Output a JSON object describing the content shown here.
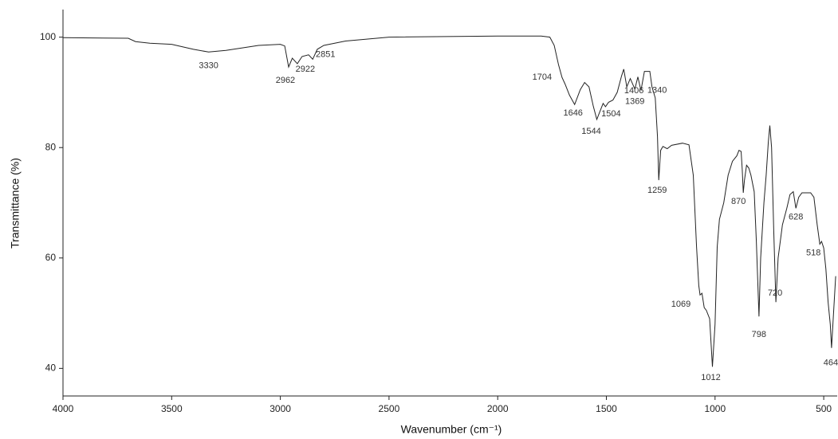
{
  "chart_data": {
    "type": "line",
    "x_label": "Wavenumber (cm⁻¹)",
    "y_label": "Transmittance (%)",
    "xlim": [
      4000,
      438
    ],
    "ylim": [
      35,
      105
    ],
    "xticks": [
      4000,
      3500,
      3000,
      2500,
      2000,
      1500,
      1000,
      500
    ],
    "yticks": [
      40,
      60,
      80,
      100
    ],
    "x_reversed": true,
    "series": [
      {
        "color": "#222222",
        "x": [
          4000,
          3700,
          3666,
          3600,
          3500,
          3400,
          3330,
          3250,
          3100,
          3000,
          2980,
          2962,
          2945,
          2922,
          2900,
          2870,
          2851,
          2830,
          2800,
          2700,
          2500,
          2000,
          1800,
          1760,
          1740,
          1720,
          1704,
          1690,
          1670,
          1646,
          1620,
          1600,
          1580,
          1560,
          1544,
          1530,
          1515,
          1504,
          1490,
          1470,
          1450,
          1430,
          1420,
          1406,
          1390,
          1369,
          1355,
          1345,
          1340,
          1325,
          1300,
          1290,
          1275,
          1265,
          1259,
          1250,
          1240,
          1220,
          1200,
          1150,
          1120,
          1100,
          1085,
          1075,
          1069,
          1060,
          1050,
          1040,
          1025,
          1012,
          1000,
          990,
          980,
          960,
          940,
          920,
          900,
          890,
          880,
          875,
          870,
          865,
          855,
          845,
          835,
          820,
          810,
          798,
          790,
          775,
          765,
          755,
          748,
          740,
          730,
          720,
          710,
          690,
          670,
          655,
          640,
          628,
          615,
          600,
          560,
          545,
          530,
          518,
          510,
          500,
          490,
          480,
          470,
          464,
          455,
          445
        ],
        "values": [
          99.9,
          99.8,
          99.2,
          98.9,
          98.7,
          97.8,
          97.3,
          97.6,
          98.5,
          98.7,
          98.4,
          94.6,
          96.2,
          95.2,
          96.5,
          96.8,
          96.0,
          97.8,
          98.5,
          99.3,
          100,
          100.2,
          100.2,
          100.0,
          98.5,
          95,
          92.7,
          91.5,
          89.5,
          87.8,
          90.5,
          91.8,
          91,
          87.5,
          85.1,
          86.5,
          88,
          87.4,
          88.2,
          88.6,
          90,
          93,
          94.2,
          91,
          92.5,
          90.6,
          92.8,
          91.0,
          90.5,
          93.8,
          93.8,
          91,
          89,
          82,
          74.1,
          79.5,
          80.2,
          79.8,
          80.4,
          80.8,
          80.5,
          75,
          62,
          55,
          53.3,
          53.6,
          51,
          50.5,
          49,
          40.3,
          48,
          62,
          67,
          70,
          75,
          77.5,
          78.5,
          79.5,
          79.3,
          76,
          71.8,
          74,
          76.8,
          76.3,
          75,
          72,
          63,
          49.4,
          60,
          70,
          75,
          81,
          84,
          80,
          65,
          52,
          60,
          66,
          69,
          71.5,
          72,
          69,
          71,
          71.8,
          71.8,
          71,
          66,
          62.5,
          63,
          61.8,
          58,
          52,
          48,
          43.7,
          50,
          56.7
        ]
      }
    ],
    "annotations": [
      {
        "x": 3330,
        "y": 97.3,
        "label": "3330"
      },
      {
        "x": 2962,
        "y": 94.6,
        "label": "2962"
      },
      {
        "x": 2922,
        "y": 95.2,
        "label": "2922"
      },
      {
        "x": 2851,
        "y": 96.0,
        "label": "2851"
      },
      {
        "x": 1704,
        "y": 92.7,
        "label": "1704"
      },
      {
        "x": 1646,
        "y": 87.8,
        "label": "1646"
      },
      {
        "x": 1544,
        "y": 85.1,
        "label": "1544"
      },
      {
        "x": 1504,
        "y": 87.4,
        "label": "1504"
      },
      {
        "x": 1406,
        "y": 91,
        "label": "1406"
      },
      {
        "x": 1369,
        "y": 90.6,
        "label": "1369"
      },
      {
        "x": 1340,
        "y": 90.5,
        "label": "1340"
      },
      {
        "x": 1259,
        "y": 74.1,
        "label": "1259"
      },
      {
        "x": 1069,
        "y": 53.3,
        "label": "1069"
      },
      {
        "x": 1012,
        "y": 40.3,
        "label": "1012"
      },
      {
        "x": 870,
        "y": 71.8,
        "label": "870"
      },
      {
        "x": 798,
        "y": 49.4,
        "label": "798"
      },
      {
        "x": 720,
        "y": 52,
        "label": "720"
      },
      {
        "x": 628,
        "y": 69,
        "label": "628"
      },
      {
        "x": 518,
        "y": 62.5,
        "label": "518"
      },
      {
        "x": 464,
        "y": 43.7,
        "label": "464"
      }
    ]
  }
}
